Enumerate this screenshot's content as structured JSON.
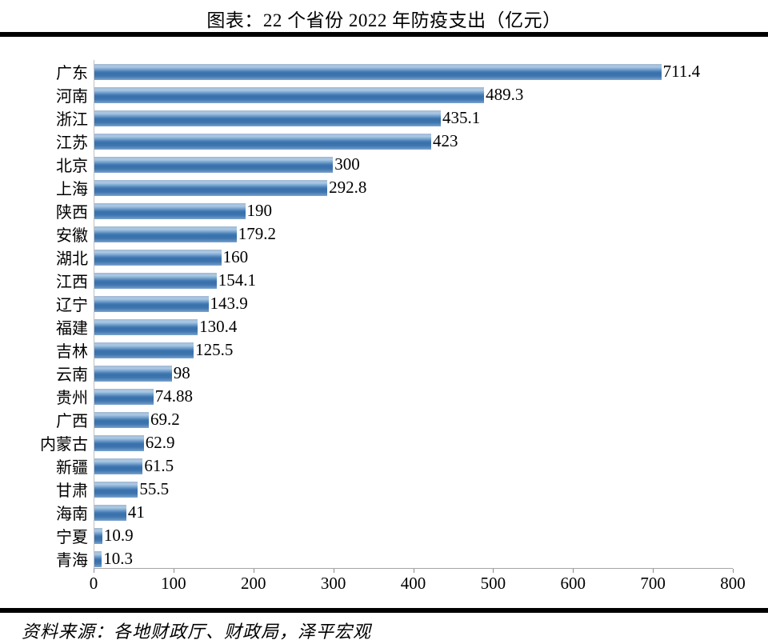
{
  "title": "图表：22 个省份 2022 年防疫支出（亿元）",
  "source": "资料来源：各地财政厅、财政局，泽平宏观",
  "colors": {
    "bar_main": "#3f73ae",
    "bar_light": "#abc9e5",
    "axis_line": "#a6a6a6",
    "tick": "#8c8c8c",
    "rule": "#000000",
    "text": "#000000",
    "background": "#ffffff"
  },
  "chart_data": {
    "type": "bar",
    "orientation": "horizontal",
    "title": "图表：22 个省份 2022 年防疫支出（亿元）",
    "unit": "亿元",
    "categories": [
      "广东",
      "河南",
      "浙江",
      "江苏",
      "北京",
      "上海",
      "陕西",
      "安徽",
      "湖北",
      "江西",
      "辽宁",
      "福建",
      "吉林",
      "云南",
      "贵州",
      "广西",
      "内蒙古",
      "新疆",
      "甘肃",
      "海南",
      "宁夏",
      "青海"
    ],
    "values": [
      711.4,
      489.3,
      435.1,
      423,
      300,
      292.8,
      190,
      179.2,
      160,
      154.1,
      143.9,
      130.4,
      125.5,
      98,
      74.88,
      69.2,
      62.9,
      61.5,
      55.5,
      41,
      10.9,
      10.3
    ],
    "value_labels": true,
    "xlim": [
      0,
      800
    ],
    "x_ticks": [
      0,
      100,
      200,
      300,
      400,
      500,
      600,
      700,
      800
    ],
    "grid": false,
    "legend": null
  }
}
